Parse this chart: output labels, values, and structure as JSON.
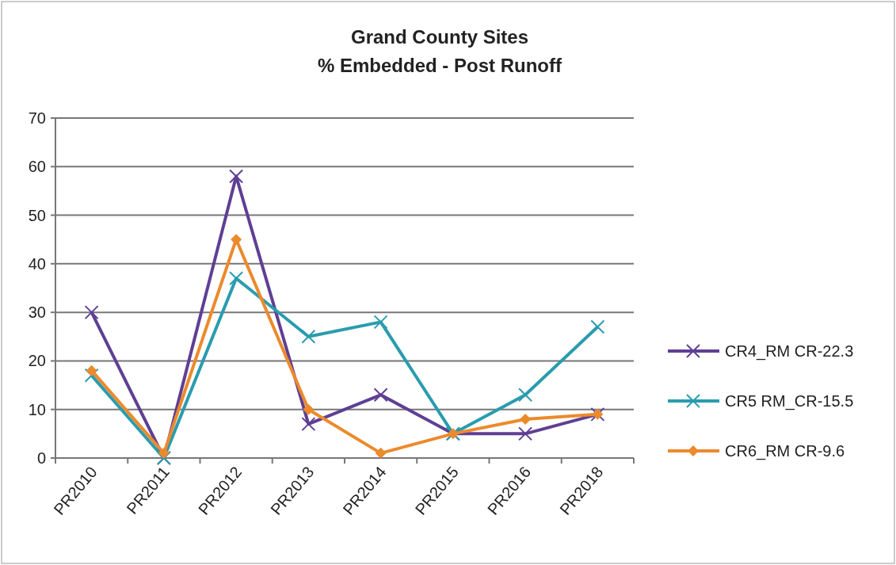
{
  "chart_data": {
    "type": "line",
    "title": "Grand County Sites\n% Embedded - Post Runoff",
    "categories": [
      "PR2010",
      "PR2011",
      "PR2012",
      "PR2013",
      "PR2014",
      "PR2015",
      "PR2016",
      "PR2018"
    ],
    "series": [
      {
        "name": "CR4_RM CR-22.3",
        "color": "#5f3f94",
        "marker": "cross",
        "values": [
          30,
          0,
          58,
          7,
          13,
          5,
          5,
          9
        ]
      },
      {
        "name": "CR5 RM_CR-15.5",
        "color": "#2a9cae",
        "marker": "cross",
        "values": [
          17,
          0,
          37,
          25,
          28,
          5,
          13,
          27
        ]
      },
      {
        "name": "CR6_RM CR-9.6",
        "color": "#ec8a2c",
        "marker": "diamond",
        "values": [
          18,
          1,
          45,
          10,
          1,
          5,
          8,
          9
        ]
      }
    ],
    "ylim": [
      0,
      70
    ],
    "yticks": [
      0,
      10,
      20,
      30,
      40,
      50,
      60,
      70
    ],
    "grid": "y",
    "legend": "right",
    "line_style": "solid"
  }
}
